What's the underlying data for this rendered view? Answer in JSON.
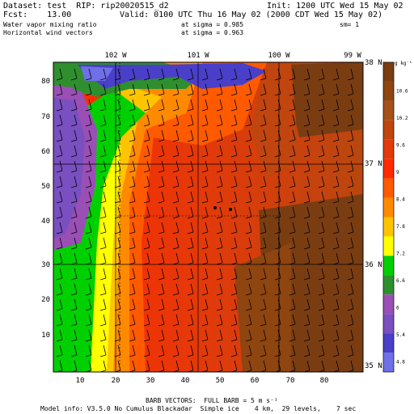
{
  "header": {
    "dataset": "Dataset: test  RIP: rip20020515_d2",
    "init": "Init: 1200 UTC Wed 15 May 02",
    "fcst": "Fcst:    13.00",
    "valid": "Valid: 0100 UTC Thu 16 May 02 (2000 CDT Wed 15 May 02)",
    "field1": "Water vapor mixing ratio",
    "sigma1": "at sigma = 0.985",
    "sm": "sm= 1",
    "field2": "Horizontal wind vectors",
    "sigma2": "at sigma = 0.963"
  },
  "map": {
    "lon_labels": [
      "102 W",
      "101 W",
      "100 W",
      "99 W"
    ],
    "lat_labels": [
      "38 N",
      "37 N",
      "36 N",
      "35 N"
    ],
    "y_ticks": [
      "80",
      "70",
      "60",
      "50",
      "40",
      "30",
      "20",
      "10"
    ],
    "x_ticks": [
      "10",
      "20",
      "30",
      "40",
      "50",
      "60",
      "70",
      "80"
    ],
    "field": "Water vapor mixing ratio",
    "units": "g kg-1"
  },
  "colorbar": {
    "units_label": "g kg⁻¹",
    "levels": [
      "10.6",
      "10.2",
      "9.6",
      "9",
      "8.4",
      "7.8",
      "7.2",
      "6.6",
      "6",
      "5.4",
      "4.8"
    ],
    "colors": [
      "#7a3d12",
      "#8e4510",
      "#a6501a",
      "#c0450f",
      "#e23a0a",
      "#ff2a00",
      "#ff5a00",
      "#ff8a00",
      "#ffc400",
      "#ffff00",
      "#00d000",
      "#2f8f2f",
      "#9a4fb5",
      "#7a4fc0",
      "#4a3fc8",
      "#6f6fe8"
    ]
  },
  "footer": {
    "barb": "BARB VECTORS:  FULL BARB = 5 m s⁻¹",
    "model": "Model info: V3.5.0 No Cumulus Blackadar  Simple ice    4 km,  29 levels,    7 sec"
  }
}
